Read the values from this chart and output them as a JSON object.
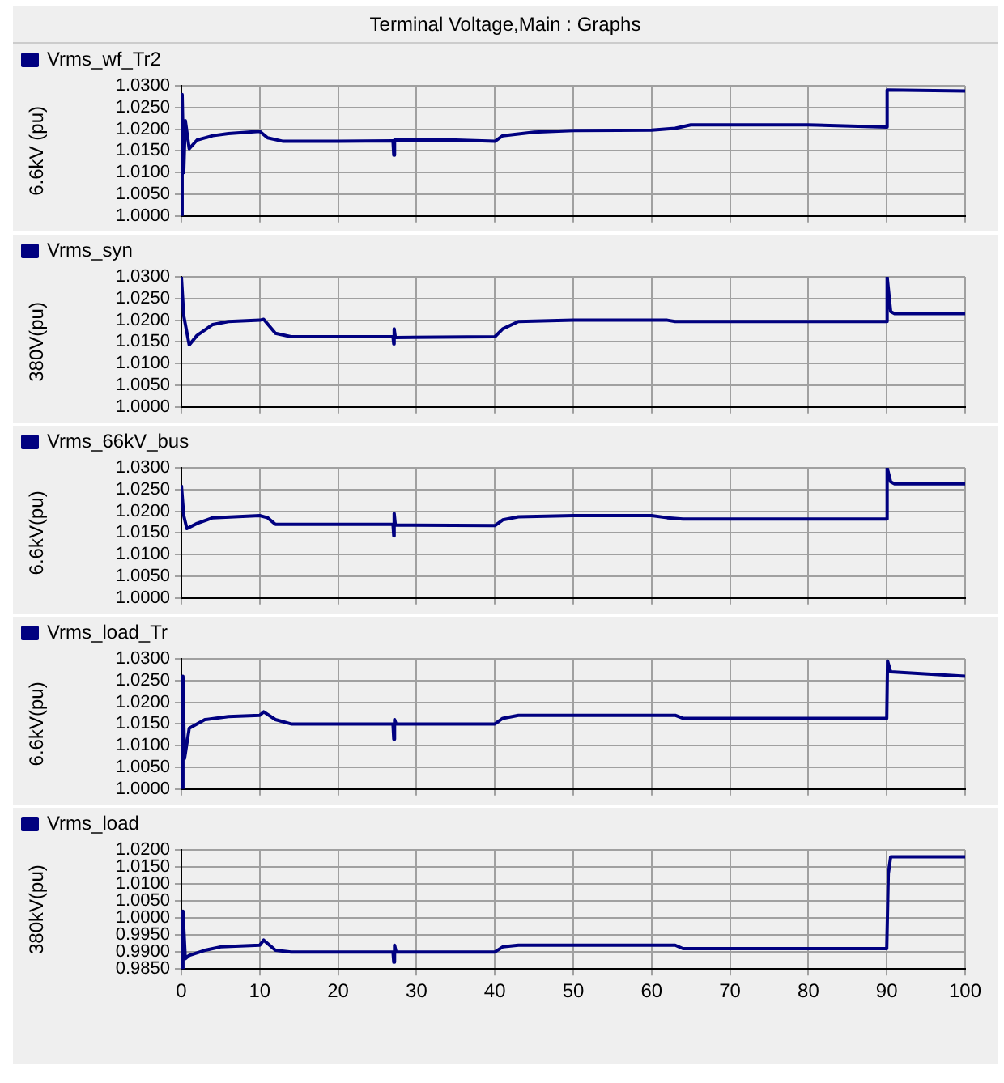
{
  "chart_data": [
    {
      "type": "line",
      "title": "Terminal Voltage,Main : Graphs",
      "ylabel": "6.6kV (pu)",
      "legend": "top left",
      "grid": true,
      "marker": "none",
      "tick_labels": "y",
      "xlim": [
        0,
        100
      ],
      "xticks": [
        0,
        10,
        20,
        30,
        40,
        50,
        60,
        70,
        80,
        90,
        100
      ],
      "ylim": [
        1.0,
        1.03
      ],
      "yticks": [
        {
          "value": 1.0,
          "label": "1.0000"
        },
        {
          "value": 1.005,
          "label": "1.0050"
        },
        {
          "value": 1.01,
          "label": "1.0100"
        },
        {
          "value": 1.015,
          "label": "1.0150"
        },
        {
          "value": 1.02,
          "label": "1.0200"
        },
        {
          "value": 1.025,
          "label": "1.0250"
        },
        {
          "value": 1.03,
          "label": "1.0300"
        }
      ],
      "series": [
        {
          "name": "Vrms_wf_Tr2",
          "color": "#000080",
          "x": [
            0,
            0.1,
            0.3,
            0.5,
            1,
            2,
            4,
            6,
            10,
            11,
            13,
            20,
            27,
            27.1,
            27.2,
            35,
            40,
            41,
            45,
            50,
            60,
            63,
            65,
            80,
            90,
            90.05,
            100
          ],
          "values": [
            1.0,
            1.028,
            1.01,
            1.022,
            1.0155,
            1.0175,
            1.0185,
            1.019,
            1.0195,
            1.018,
            1.0172,
            1.0172,
            1.0173,
            1.014,
            1.0175,
            1.0175,
            1.0172,
            1.0185,
            1.0193,
            1.0197,
            1.0198,
            1.0202,
            1.021,
            1.021,
            1.0205,
            1.029,
            1.0288
          ]
        }
      ]
    },
    {
      "type": "line",
      "ylabel": "380V(pu)",
      "legend": "top left",
      "grid": true,
      "marker": "none",
      "tick_labels": "y",
      "xlim": [
        0,
        100
      ],
      "xticks": [
        0,
        10,
        20,
        30,
        40,
        50,
        60,
        70,
        80,
        90,
        100
      ],
      "ylim": [
        1.0,
        1.03
      ],
      "yticks": [
        {
          "value": 1.0,
          "label": "1.0000"
        },
        {
          "value": 1.005,
          "label": "1.0050"
        },
        {
          "value": 1.01,
          "label": "1.0100"
        },
        {
          "value": 1.015,
          "label": "1.0150"
        },
        {
          "value": 1.02,
          "label": "1.0200"
        },
        {
          "value": 1.025,
          "label": "1.0250"
        },
        {
          "value": 1.03,
          "label": "1.0300"
        }
      ],
      "series": [
        {
          "name": "Vrms_syn",
          "color": "#000080",
          "x": [
            0,
            0.3,
            1,
            2,
            4,
            6,
            10,
            10.5,
            12,
            14,
            27,
            27.1,
            27.15,
            27.3,
            40,
            41,
            43,
            50,
            62,
            63,
            90,
            90.05,
            90.5,
            91,
            100
          ],
          "values": [
            1.03,
            1.021,
            1.0143,
            1.0165,
            1.019,
            1.0197,
            1.02,
            1.0202,
            1.017,
            1.0162,
            1.0162,
            1.0145,
            1.018,
            1.016,
            1.0162,
            1.018,
            1.0197,
            1.02,
            1.02,
            1.0197,
            1.0197,
            1.03,
            1.022,
            1.0215,
            1.0215
          ]
        }
      ]
    },
    {
      "type": "line",
      "ylabel": "6.6kV(pu)",
      "legend": "top left",
      "grid": true,
      "marker": "none",
      "tick_labels": "y",
      "xlim": [
        0,
        100
      ],
      "xticks": [
        0,
        10,
        20,
        30,
        40,
        50,
        60,
        70,
        80,
        90,
        100
      ],
      "ylim": [
        1.0,
        1.03
      ],
      "yticks": [
        {
          "value": 1.0,
          "label": "1.0000"
        },
        {
          "value": 1.005,
          "label": "1.0050"
        },
        {
          "value": 1.01,
          "label": "1.0100"
        },
        {
          "value": 1.015,
          "label": "1.0150"
        },
        {
          "value": 1.02,
          "label": "1.0200"
        },
        {
          "value": 1.025,
          "label": "1.0250"
        },
        {
          "value": 1.03,
          "label": "1.0300"
        }
      ],
      "series": [
        {
          "name": "Vrms_66kV_bus",
          "color": "#000080",
          "x": [
            0,
            0.3,
            0.7,
            2,
            4,
            10,
            11,
            12,
            27,
            27.1,
            27.15,
            27.3,
            40,
            41,
            43,
            50,
            60,
            62,
            64,
            90,
            90.05,
            90.5,
            91,
            100
          ],
          "values": [
            1.026,
            1.019,
            1.016,
            1.0172,
            1.0185,
            1.019,
            1.0185,
            1.017,
            1.017,
            1.0143,
            1.0195,
            1.0168,
            1.0167,
            1.018,
            1.0187,
            1.019,
            1.019,
            1.0185,
            1.0182,
            1.0182,
            1.03,
            1.0268,
            1.0263,
            1.0263
          ]
        }
      ]
    },
    {
      "type": "line",
      "ylabel": "6.6kV(pu)",
      "legend": "top left",
      "grid": true,
      "marker": "none",
      "tick_labels": "y",
      "xlim": [
        0,
        100
      ],
      "xticks": [
        0,
        10,
        20,
        30,
        40,
        50,
        60,
        70,
        80,
        90,
        100
      ],
      "ylim": [
        1.0,
        1.03
      ],
      "yticks": [
        {
          "value": 1.0,
          "label": "1.0000"
        },
        {
          "value": 1.005,
          "label": "1.0050"
        },
        {
          "value": 1.01,
          "label": "1.0100"
        },
        {
          "value": 1.015,
          "label": "1.0150"
        },
        {
          "value": 1.02,
          "label": "1.0200"
        },
        {
          "value": 1.025,
          "label": "1.0250"
        },
        {
          "value": 1.03,
          "label": "1.0300"
        }
      ],
      "series": [
        {
          "name": "Vrms_load_Tr",
          "color": "#000080",
          "x": [
            0,
            0.2,
            0.4,
            1,
            3,
            6,
            10,
            10.5,
            12,
            14,
            27,
            27.1,
            27.2,
            27.4,
            40,
            41,
            43,
            63,
            64,
            90,
            90.1,
            90.5,
            100
          ],
          "values": [
            1.0,
            1.026,
            1.007,
            1.014,
            1.016,
            1.0167,
            1.017,
            1.0178,
            1.016,
            1.015,
            1.015,
            1.0115,
            1.016,
            1.015,
            1.015,
            1.0163,
            1.017,
            1.017,
            1.0163,
            1.0163,
            1.0295,
            1.027,
            1.026
          ]
        }
      ]
    },
    {
      "type": "line",
      "ylabel": "380kV(pu)",
      "legend": "top left",
      "grid": true,
      "marker": "none",
      "xlim": [
        0,
        100
      ],
      "xticks": [
        0,
        10,
        20,
        30,
        40,
        50,
        60,
        70,
        80,
        90,
        100
      ],
      "ylim": [
        0.985,
        1.02
      ],
      "yticks": [
        {
          "value": 0.985,
          "label": "0.9850"
        },
        {
          "value": 0.99,
          "label": "0.9900"
        },
        {
          "value": 0.995,
          "label": "0.9950"
        },
        {
          "value": 1.0,
          "label": "1.0000"
        },
        {
          "value": 1.005,
          "label": "1.0050"
        },
        {
          "value": 1.01,
          "label": "1.0100"
        },
        {
          "value": 1.015,
          "label": "1.0150"
        },
        {
          "value": 1.02,
          "label": "1.0200"
        }
      ],
      "series": [
        {
          "name": "Vrms_load",
          "color": "#000080",
          "x": [
            0,
            0.2,
            0.5,
            1,
            3,
            5,
            10,
            10.5,
            12,
            14,
            27,
            27.1,
            27.2,
            27.4,
            40,
            41,
            43,
            63,
            64,
            90,
            90.2,
            90.5,
            100
          ],
          "values": [
            0.985,
            1.002,
            0.988,
            0.989,
            0.9905,
            0.9915,
            0.992,
            0.9935,
            0.9905,
            0.99,
            0.99,
            0.987,
            0.992,
            0.99,
            0.99,
            0.9915,
            0.992,
            0.992,
            0.991,
            0.991,
            1.013,
            1.018,
            1.018
          ]
        }
      ]
    }
  ]
}
